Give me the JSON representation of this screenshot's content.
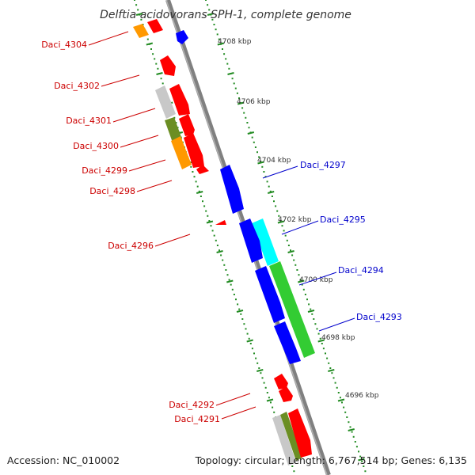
{
  "title": "Delftia acidovorans SPH-1, complete genome",
  "accession_text": "Accession: NC_010002",
  "summary_text": "Topology: circular; Length: 6,767,514 bp; Genes: 6,135",
  "colors": {
    "backbone": "#808080",
    "tick": "#228b22",
    "reverse_label": "#cc0000",
    "forward_label": "#0000cc",
    "red": "#ff0000",
    "blue": "#0000ff",
    "cyan": "#00ffff",
    "green": "#33cc33",
    "orange": "#ff9900",
    "gray": "#bfbfbf",
    "olive": "#6b8e23"
  },
  "scale_labels": [
    "4708 kbp",
    "4706 kbp",
    "4704 kbp",
    "4702 kbp",
    "4700 kbp",
    "4698 kbp",
    "4696 kbp"
  ],
  "genes": [
    {
      "id": "Daci_4304",
      "strand": "reverse"
    },
    {
      "id": "Daci_4302",
      "strand": "reverse"
    },
    {
      "id": "Daci_4301",
      "strand": "reverse"
    },
    {
      "id": "Daci_4300",
      "strand": "reverse"
    },
    {
      "id": "Daci_4299",
      "strand": "reverse"
    },
    {
      "id": "Daci_4298",
      "strand": "reverse"
    },
    {
      "id": "Daci_4297",
      "strand": "forward"
    },
    {
      "id": "Daci_4296",
      "strand": "reverse"
    },
    {
      "id": "Daci_4295",
      "strand": "forward"
    },
    {
      "id": "Daci_4294",
      "strand": "forward"
    },
    {
      "id": "Daci_4293",
      "strand": "forward"
    },
    {
      "id": "Daci_4292",
      "strand": "reverse"
    },
    {
      "id": "Daci_4291",
      "strand": "reverse"
    }
  ]
}
